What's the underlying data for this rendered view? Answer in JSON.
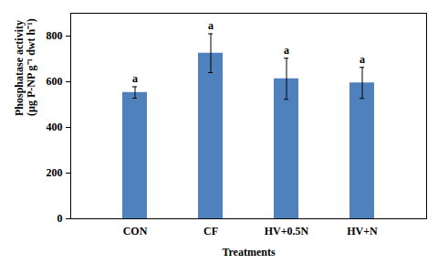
{
  "chart_data": {
    "type": "bar",
    "x_label": "Treatments",
    "y_label": "Phosphatase activity\n(µg P-NP g⁻¹ dwt h⁻¹)",
    "categories": [
      "CON",
      "CF",
      "HV+0.5N",
      "HV+N"
    ],
    "values": [
      553,
      725,
      613,
      595
    ],
    "errors": [
      25,
      85,
      90,
      68
    ],
    "significance_letters": [
      "a",
      "a",
      "a",
      "a"
    ],
    "color": "#4f81bd",
    "ylim": [
      0,
      900
    ],
    "yticks": [
      0,
      200,
      400,
      600,
      800
    ],
    "grid": false
  }
}
